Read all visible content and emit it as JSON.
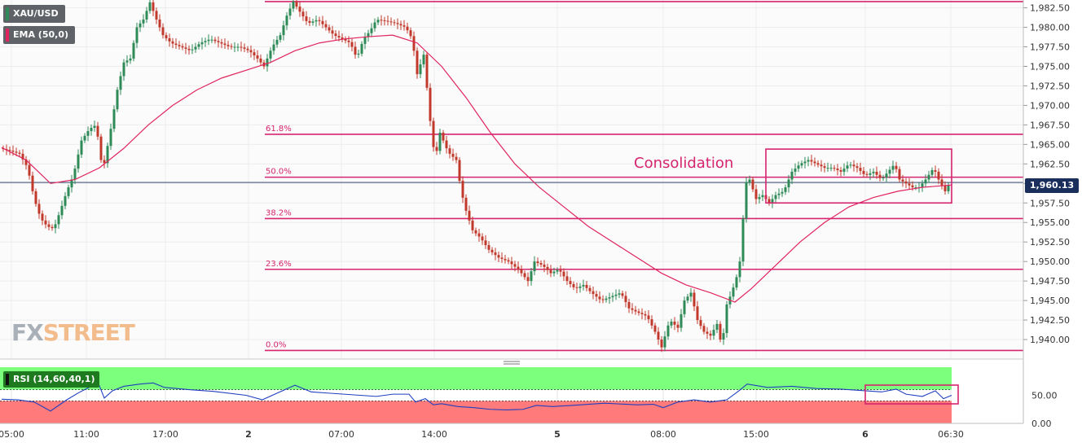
{
  "symbol": "XAU/USD",
  "indicator_label": "EMA (50,0)",
  "last_price": "1,960.13",
  "logo": {
    "part1": "FX",
    "part2": "STREET"
  },
  "colors": {
    "candle_up": "#2e8b57",
    "candle_down": "#c0392b",
    "ema": "#e0245e",
    "fib": "#d6246e",
    "rsi_line": "#1f3fbf",
    "rsi_upper_zone": "#7cff7c",
    "rsi_lower_zone": "#ff7b7b",
    "price_tag": "#1a2f5c"
  },
  "chart_data": {
    "type": "candlestick",
    "y_axis": {
      "range": [
        1937.5,
        1983.5
      ],
      "ticks": [
        "1,982.50",
        "1,980.00",
        "1,977.50",
        "1,975.00",
        "1,972.50",
        "1,970.00",
        "1,967.50",
        "1,965.00",
        "1,962.50",
        "1,960.00",
        "1,957.50",
        "1,955.00",
        "1,952.50",
        "1,950.00",
        "1,947.50",
        "1,945.00",
        "1,942.50",
        "1,940.00"
      ]
    },
    "x_axis": {
      "ticks": [
        "05:00",
        "11:00",
        "17:00",
        "2",
        "07:00",
        "14:00",
        "5",
        "08:00",
        "15:00",
        "6",
        "06:30"
      ],
      "bold_ticks": [
        "2",
        "5",
        "6"
      ]
    },
    "price_path": [
      [
        0,
        1964.5
      ],
      [
        12,
        1964.2
      ],
      [
        24,
        1963.8
      ],
      [
        34,
        1962.0
      ],
      [
        42,
        1958.0
      ],
      [
        50,
        1955.5
      ],
      [
        58,
        1954.5
      ],
      [
        66,
        1954.2
      ],
      [
        74,
        1956.5
      ],
      [
        82,
        1959.0
      ],
      [
        90,
        1961.0
      ],
      [
        100,
        1965.5
      ],
      [
        110,
        1967.0
      ],
      [
        118,
        1967.5
      ],
      [
        126,
        1961.5
      ],
      [
        136,
        1967.0
      ],
      [
        144,
        1972.0
      ],
      [
        152,
        1975.5
      ],
      [
        160,
        1976.0
      ],
      [
        168,
        1980.0
      ],
      [
        176,
        1981.0
      ],
      [
        184,
        1983.2
      ],
      [
        192,
        1981.0
      ],
      [
        200,
        1979.0
      ],
      [
        210,
        1978.0
      ],
      [
        222,
        1977.5
      ],
      [
        234,
        1977.0
      ],
      [
        246,
        1978.0
      ],
      [
        258,
        1978.5
      ],
      [
        270,
        1978.0
      ],
      [
        282,
        1977.5
      ],
      [
        294,
        1977.5
      ],
      [
        306,
        1977.0
      ],
      [
        316,
        1976.0
      ],
      [
        324,
        1975.0
      ],
      [
        334,
        1977.5
      ],
      [
        344,
        1979.0
      ],
      [
        352,
        1981.5
      ],
      [
        360,
        1983.3
      ],
      [
        368,
        1982.0
      ],
      [
        378,
        1980.5
      ],
      [
        390,
        1981.0
      ],
      [
        400,
        1980.0
      ],
      [
        410,
        1979.0
      ],
      [
        420,
        1978.5
      ],
      [
        430,
        1978.0
      ],
      [
        438,
        1976.0
      ],
      [
        446,
        1978.5
      ],
      [
        454,
        1979.5
      ],
      [
        462,
        1981.0
      ],
      [
        474,
        1980.8
      ],
      [
        486,
        1980.5
      ],
      [
        498,
        1980.0
      ],
      [
        506,
        1978.5
      ],
      [
        512,
        1974.0
      ],
      [
        520,
        1976.5
      ],
      [
        528,
        1968.0
      ],
      [
        534,
        1963.0
      ],
      [
        540,
        1966.5
      ],
      [
        550,
        1964.0
      ],
      [
        560,
        1963.0
      ],
      [
        566,
        1959.0
      ],
      [
        572,
        1956.5
      ],
      [
        580,
        1954.0
      ],
      [
        590,
        1953.0
      ],
      [
        600,
        1951.5
      ],
      [
        612,
        1950.5
      ],
      [
        624,
        1950.0
      ],
      [
        636,
        1949.0
      ],
      [
        648,
        1947.5
      ],
      [
        656,
        1950.0
      ],
      [
        666,
        1949.5
      ],
      [
        676,
        1948.5
      ],
      [
        686,
        1949.0
      ],
      [
        696,
        1947.5
      ],
      [
        706,
        1946.5
      ],
      [
        716,
        1947.0
      ],
      [
        726,
        1946.0
      ],
      [
        738,
        1945.0
      ],
      [
        750,
        1945.5
      ],
      [
        762,
        1946.0
      ],
      [
        772,
        1944.0
      ],
      [
        782,
        1943.5
      ],
      [
        794,
        1943.0
      ],
      [
        804,
        1941.0
      ],
      [
        812,
        1939.0
      ],
      [
        822,
        1942.5
      ],
      [
        832,
        1941.5
      ],
      [
        840,
        1945.0
      ],
      [
        848,
        1946.0
      ],
      [
        856,
        1942.5
      ],
      [
        864,
        1941.0
      ],
      [
        872,
        1940.5
      ],
      [
        880,
        1942.0
      ],
      [
        886,
        1939.0
      ],
      [
        892,
        1944.5
      ],
      [
        898,
        1946.0
      ],
      [
        904,
        1948.0
      ],
      [
        910,
        1951.0
      ],
      [
        914,
        1960.0
      ],
      [
        920,
        1960.5
      ],
      [
        928,
        1958.0
      ],
      [
        936,
        1958.5
      ],
      [
        944,
        1957.5
      ],
      [
        952,
        1958.5
      ],
      [
        962,
        1959.0
      ],
      [
        972,
        1961.5
      ],
      [
        982,
        1962.5
      ],
      [
        992,
        1963.0
      ],
      [
        1002,
        1962.5
      ],
      [
        1012,
        1962.0
      ],
      [
        1022,
        1962.0
      ],
      [
        1032,
        1961.5
      ],
      [
        1042,
        1962.5
      ],
      [
        1052,
        1962.0
      ],
      [
        1062,
        1961.0
      ],
      [
        1072,
        1961.5
      ],
      [
        1082,
        1960.5
      ],
      [
        1090,
        1961.5
      ],
      [
        1098,
        1962.5
      ],
      [
        1104,
        1960.5
      ],
      [
        1112,
        1960.0
      ],
      [
        1120,
        1959.5
      ],
      [
        1128,
        1959.5
      ],
      [
        1136,
        1960.5
      ],
      [
        1146,
        1962.0
      ],
      [
        1152,
        1960.5
      ],
      [
        1160,
        1959.0
      ],
      [
        1166,
        1960.1
      ]
    ],
    "ema_path": [
      [
        0,
        1964.6
      ],
      [
        30,
        1963.0
      ],
      [
        60,
        1960.0
      ],
      [
        90,
        1960.5
      ],
      [
        120,
        1962.0
      ],
      [
        150,
        1964.5
      ],
      [
        180,
        1967.5
      ],
      [
        210,
        1970.0
      ],
      [
        240,
        1972.0
      ],
      [
        270,
        1973.5
      ],
      [
        300,
        1974.5
      ],
      [
        330,
        1975.5
      ],
      [
        360,
        1977.0
      ],
      [
        390,
        1978.0
      ],
      [
        420,
        1978.5
      ],
      [
        450,
        1978.8
      ],
      [
        480,
        1979.0
      ],
      [
        510,
        1978.0
      ],
      [
        540,
        1975.0
      ],
      [
        570,
        1971.0
      ],
      [
        600,
        1966.5
      ],
      [
        630,
        1962.5
      ],
      [
        660,
        1959.5
      ],
      [
        690,
        1957.0
      ],
      [
        720,
        1954.5
      ],
      [
        750,
        1952.5
      ],
      [
        780,
        1950.5
      ],
      [
        810,
        1948.5
      ],
      [
        840,
        1947.0
      ],
      [
        870,
        1946.0
      ],
      [
        900,
        1944.8
      ],
      [
        920,
        1946.5
      ],
      [
        950,
        1949.5
      ],
      [
        980,
        1952.5
      ],
      [
        1010,
        1955.0
      ],
      [
        1040,
        1957.0
      ],
      [
        1070,
        1958.2
      ],
      [
        1100,
        1959.0
      ],
      [
        1130,
        1959.5
      ],
      [
        1166,
        1959.8
      ]
    ],
    "fibonacci": [
      {
        "label": "0.0%",
        "value": 1938.6
      },
      {
        "label": "23.6%",
        "value": 1949.0
      },
      {
        "label": "38.2%",
        "value": 1955.5
      },
      {
        "label": "50.0%",
        "value": 1960.8
      },
      {
        "label": "61.8%",
        "value": 1966.3
      },
      {
        "label": "",
        "value": 1983.3
      }
    ],
    "annotation": {
      "text": "Consolidation",
      "price_top": 1964.4,
      "price_bottom": 1957.5
    },
    "rsi": {
      "label": "RSI (14,60,40,1)",
      "range": [
        0,
        100
      ],
      "ticks": [
        "50.00",
        "0.00"
      ],
      "zones": {
        "upper": 60,
        "lower": 40
      },
      "path": [
        [
          0,
          43
        ],
        [
          20,
          42
        ],
        [
          40,
          38
        ],
        [
          60,
          22
        ],
        [
          80,
          42
        ],
        [
          95,
          55
        ],
        [
          110,
          66
        ],
        [
          120,
          67
        ],
        [
          126,
          45
        ],
        [
          136,
          58
        ],
        [
          150,
          66
        ],
        [
          170,
          70
        ],
        [
          186,
          72
        ],
        [
          200,
          64
        ],
        [
          230,
          60
        ],
        [
          260,
          57
        ],
        [
          300,
          50
        ],
        [
          320,
          42
        ],
        [
          340,
          55
        ],
        [
          360,
          68
        ],
        [
          380,
          56
        ],
        [
          400,
          54
        ],
        [
          420,
          52
        ],
        [
          440,
          50
        ],
        [
          460,
          48
        ],
        [
          480,
          52
        ],
        [
          500,
          52
        ],
        [
          508,
          38
        ],
        [
          520,
          44
        ],
        [
          530,
          33
        ],
        [
          540,
          35
        ],
        [
          560,
          30
        ],
        [
          580,
          28
        ],
        [
          600,
          25
        ],
        [
          620,
          24
        ],
        [
          640,
          25
        ],
        [
          656,
          32
        ],
        [
          676,
          30
        ],
        [
          700,
          32
        ],
        [
          740,
          36
        ],
        [
          780,
          33
        ],
        [
          800,
          34
        ],
        [
          812,
          28
        ],
        [
          830,
          38
        ],
        [
          850,
          42
        ],
        [
          870,
          38
        ],
        [
          890,
          42
        ],
        [
          905,
          58
        ],
        [
          915,
          70
        ],
        [
          940,
          64
        ],
        [
          970,
          66
        ],
        [
          1000,
          62
        ],
        [
          1030,
          61
        ],
        [
          1060,
          58
        ],
        [
          1080,
          56
        ],
        [
          1098,
          61
        ],
        [
          1110,
          52
        ],
        [
          1130,
          48
        ],
        [
          1146,
          58
        ],
        [
          1156,
          44
        ],
        [
          1166,
          50
        ]
      ]
    }
  }
}
